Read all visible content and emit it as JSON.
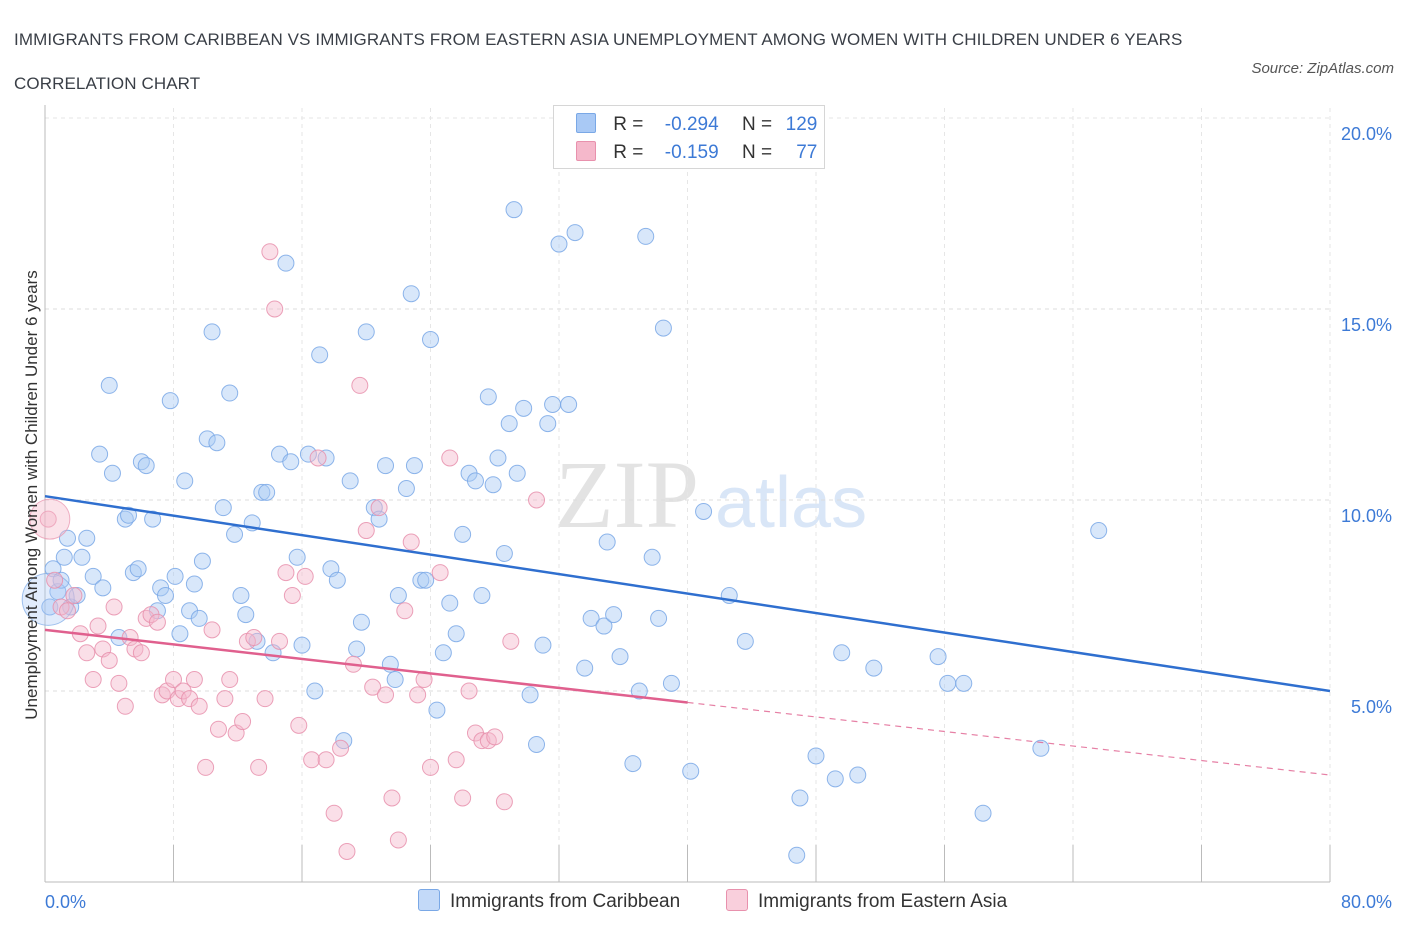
{
  "title": "IMMIGRANTS FROM CARIBBEAN VS IMMIGRANTS FROM EASTERN ASIA UNEMPLOYMENT AMONG WOMEN WITH CHILDREN UNDER 6 YEARS CORRELATION CHART",
  "source": "Source: ZipAtlas.com",
  "watermark": {
    "zip": "ZIP",
    "atlas": "atlas"
  },
  "legend": {
    "rows": [
      {
        "r_label": "R =",
        "r_value": "-0.294",
        "n_label": "N =",
        "n_value": "129",
        "color": "#a9c9f5"
      },
      {
        "r_label": "R =",
        "r_value": "-0.159",
        "n_label": "N =",
        "n_value": "77",
        "color": "#f5b8cb"
      }
    ]
  },
  "bottom_legend": {
    "caribbean": "Immigrants from Caribbean",
    "eastern_asia": "Immigrants from Eastern Asia"
  },
  "colors": {
    "caribbean_fill": "#a9c9f5",
    "caribbean_stroke": "#7aa8e6",
    "caribbean_line": "#2f6fcf",
    "eastern_asia_fill": "#f5b8cb",
    "eastern_asia_stroke": "#e891ad",
    "eastern_asia_line": "#e0608e",
    "axis_label": "#3d7ad6"
  },
  "chart_data": {
    "type": "scatter",
    "title": "IMMIGRANTS FROM CARIBBEAN VS IMMIGRANTS FROM EASTERN ASIA UNEMPLOYMENT AMONG WOMEN WITH CHILDREN UNDER 6 YEARS CORRELATION CHART",
    "xlabel": "",
    "ylabel": "Unemployment Among Women with Children Under 6 years",
    "xlim": [
      0,
      80
    ],
    "ylim": [
      0,
      20
    ],
    "x_tick_labels": [
      {
        "value": 0,
        "label": "0.0%"
      },
      {
        "value": 80,
        "label": "80.0%"
      }
    ],
    "y_tick_labels": [
      {
        "value": 5,
        "label": "5.0%"
      },
      {
        "value": 10,
        "label": "10.0%"
      },
      {
        "value": 15,
        "label": "15.0%"
      },
      {
        "value": 20,
        "label": "20.0%"
      }
    ],
    "grid": true,
    "legend_position": "top-center",
    "series": [
      {
        "name": "Immigrants from Caribbean",
        "R": -0.294,
        "N": 129,
        "trend": {
          "x": [
            0,
            80
          ],
          "y": [
            10.1,
            5.0
          ]
        },
        "points": [
          [
            0.3,
            7.2
          ],
          [
            0.5,
            8.2
          ],
          [
            0.8,
            7.6
          ],
          [
            1.0,
            7.9
          ],
          [
            1.2,
            8.5
          ],
          [
            1.4,
            9.0
          ],
          [
            1.6,
            7.2
          ],
          [
            2.0,
            7.5
          ],
          [
            2.3,
            8.5
          ],
          [
            2.6,
            9.0
          ],
          [
            3.0,
            8.0
          ],
          [
            3.4,
            11.2
          ],
          [
            3.6,
            7.7
          ],
          [
            4.0,
            13.0
          ],
          [
            4.2,
            10.7
          ],
          [
            4.6,
            6.4
          ],
          [
            5.0,
            9.5
          ],
          [
            5.2,
            9.6
          ],
          [
            5.5,
            8.1
          ],
          [
            5.8,
            8.2
          ],
          [
            6.0,
            11.0
          ],
          [
            6.3,
            10.9
          ],
          [
            6.7,
            9.5
          ],
          [
            7.0,
            7.1
          ],
          [
            7.2,
            7.7
          ],
          [
            7.5,
            7.5
          ],
          [
            7.8,
            12.6
          ],
          [
            8.1,
            8.0
          ],
          [
            8.4,
            6.5
          ],
          [
            8.7,
            10.5
          ],
          [
            9.0,
            7.1
          ],
          [
            9.3,
            7.8
          ],
          [
            9.6,
            6.9
          ],
          [
            9.8,
            8.4
          ],
          [
            10.1,
            11.6
          ],
          [
            10.4,
            14.4
          ],
          [
            10.7,
            11.5
          ],
          [
            11.1,
            9.8
          ],
          [
            11.5,
            12.8
          ],
          [
            11.8,
            9.1
          ],
          [
            12.2,
            7.5
          ],
          [
            12.5,
            7.0
          ],
          [
            12.9,
            9.4
          ],
          [
            13.2,
            6.3
          ],
          [
            13.5,
            10.2
          ],
          [
            13.8,
            10.2
          ],
          [
            14.2,
            6.0
          ],
          [
            14.6,
            11.2
          ],
          [
            15.0,
            16.2
          ],
          [
            15.3,
            11.0
          ],
          [
            15.7,
            8.5
          ],
          [
            16.0,
            6.2
          ],
          [
            16.4,
            11.2
          ],
          [
            16.8,
            5.0
          ],
          [
            17.1,
            13.8
          ],
          [
            17.5,
            11.1
          ],
          [
            17.8,
            8.2
          ],
          [
            18.2,
            7.9
          ],
          [
            18.6,
            3.7
          ],
          [
            19.0,
            10.5
          ],
          [
            19.4,
            6.1
          ],
          [
            19.7,
            6.8
          ],
          [
            20.0,
            14.4
          ],
          [
            20.5,
            9.8
          ],
          [
            20.8,
            9.5
          ],
          [
            21.2,
            10.9
          ],
          [
            21.5,
            5.7
          ],
          [
            21.8,
            5.3
          ],
          [
            22.0,
            7.5
          ],
          [
            22.5,
            10.3
          ],
          [
            22.8,
            15.4
          ],
          [
            23.0,
            10.9
          ],
          [
            23.4,
            7.9
          ],
          [
            23.7,
            7.9
          ],
          [
            24.0,
            14.2
          ],
          [
            24.4,
            4.5
          ],
          [
            24.8,
            6.0
          ],
          [
            25.2,
            7.3
          ],
          [
            25.6,
            6.5
          ],
          [
            26.0,
            9.1
          ],
          [
            26.4,
            10.7
          ],
          [
            26.8,
            10.5
          ],
          [
            27.2,
            7.5
          ],
          [
            27.6,
            12.7
          ],
          [
            27.9,
            10.4
          ],
          [
            28.2,
            11.1
          ],
          [
            28.6,
            8.6
          ],
          [
            28.9,
            12.0
          ],
          [
            29.2,
            17.6
          ],
          [
            29.4,
            10.7
          ],
          [
            29.8,
            12.4
          ],
          [
            30.2,
            4.9
          ],
          [
            30.6,
            3.6
          ],
          [
            31.0,
            6.2
          ],
          [
            31.3,
            12.0
          ],
          [
            31.6,
            12.5
          ],
          [
            32.0,
            16.7
          ],
          [
            32.6,
            12.5
          ],
          [
            33.0,
            17.0
          ],
          [
            33.6,
            5.6
          ],
          [
            34.0,
            6.9
          ],
          [
            34.8,
            6.7
          ],
          [
            35.0,
            8.9
          ],
          [
            35.4,
            7.0
          ],
          [
            35.8,
            5.9
          ],
          [
            36.6,
            3.1
          ],
          [
            37.0,
            5.0
          ],
          [
            37.4,
            16.9
          ],
          [
            37.8,
            8.5
          ],
          [
            38.2,
            6.9
          ],
          [
            38.5,
            14.5
          ],
          [
            39.0,
            5.2
          ],
          [
            40.2,
            2.9
          ],
          [
            41.0,
            9.7
          ],
          [
            42.6,
            7.5
          ],
          [
            43.6,
            6.3
          ],
          [
            46.8,
            0.7
          ],
          [
            47.0,
            2.2
          ],
          [
            48.0,
            3.3
          ],
          [
            49.2,
            2.7
          ],
          [
            49.6,
            6.0
          ],
          [
            50.6,
            2.8
          ],
          [
            51.6,
            5.6
          ],
          [
            55.6,
            5.9
          ],
          [
            56.2,
            5.2
          ],
          [
            57.2,
            5.2
          ],
          [
            58.4,
            1.8
          ],
          [
            62.0,
            3.5
          ],
          [
            65.6,
            9.2
          ]
        ]
      },
      {
        "name": "Immigrants from Eastern Asia",
        "R": -0.159,
        "N": 77,
        "trend": {
          "x": [
            0,
            40
          ],
          "y": [
            6.6,
            4.7
          ]
        },
        "trend_dashed": {
          "x": [
            40,
            80
          ],
          "y": [
            4.7,
            2.8
          ]
        },
        "points": [
          [
            0.2,
            9.5
          ],
          [
            0.6,
            7.9
          ],
          [
            1.0,
            7.2
          ],
          [
            1.4,
            7.1
          ],
          [
            1.8,
            7.5
          ],
          [
            2.2,
            6.5
          ],
          [
            2.6,
            6.0
          ],
          [
            3.0,
            5.3
          ],
          [
            3.3,
            6.7
          ],
          [
            3.6,
            6.1
          ],
          [
            4.0,
            5.8
          ],
          [
            4.3,
            7.2
          ],
          [
            4.6,
            5.2
          ],
          [
            5.0,
            4.6
          ],
          [
            5.3,
            6.4
          ],
          [
            5.6,
            6.1
          ],
          [
            6.0,
            6.0
          ],
          [
            6.3,
            6.9
          ],
          [
            6.6,
            7.0
          ],
          [
            7.0,
            6.8
          ],
          [
            7.3,
            4.9
          ],
          [
            7.6,
            5.0
          ],
          [
            8.0,
            5.3
          ],
          [
            8.3,
            4.8
          ],
          [
            8.6,
            5.0
          ],
          [
            9.0,
            4.8
          ],
          [
            9.3,
            5.3
          ],
          [
            9.6,
            4.6
          ],
          [
            10.0,
            3.0
          ],
          [
            10.4,
            6.6
          ],
          [
            10.8,
            4.0
          ],
          [
            11.2,
            4.8
          ],
          [
            11.5,
            5.3
          ],
          [
            11.9,
            3.9
          ],
          [
            12.3,
            4.2
          ],
          [
            12.6,
            6.3
          ],
          [
            13.0,
            6.4
          ],
          [
            13.3,
            3.0
          ],
          [
            13.7,
            4.8
          ],
          [
            14.0,
            16.5
          ],
          [
            14.3,
            15.0
          ],
          [
            14.6,
            6.3
          ],
          [
            15.0,
            8.1
          ],
          [
            15.4,
            7.5
          ],
          [
            15.8,
            4.1
          ],
          [
            16.2,
            8.0
          ],
          [
            16.6,
            3.2
          ],
          [
            17.0,
            11.1
          ],
          [
            17.5,
            3.2
          ],
          [
            18.0,
            1.8
          ],
          [
            18.4,
            3.5
          ],
          [
            18.8,
            0.8
          ],
          [
            19.2,
            5.7
          ],
          [
            19.6,
            13.0
          ],
          [
            20.0,
            9.2
          ],
          [
            20.4,
            5.1
          ],
          [
            20.8,
            9.8
          ],
          [
            21.2,
            4.9
          ],
          [
            21.6,
            2.2
          ],
          [
            22.0,
            1.1
          ],
          [
            22.4,
            7.1
          ],
          [
            22.8,
            8.9
          ],
          [
            23.2,
            4.9
          ],
          [
            23.6,
            5.3
          ],
          [
            24.0,
            3.0
          ],
          [
            24.6,
            8.1
          ],
          [
            25.2,
            11.1
          ],
          [
            25.6,
            3.2
          ],
          [
            26.0,
            2.2
          ],
          [
            26.4,
            5.0
          ],
          [
            26.8,
            3.9
          ],
          [
            27.2,
            3.7
          ],
          [
            27.6,
            3.7
          ],
          [
            28.0,
            3.8
          ],
          [
            28.6,
            2.1
          ],
          [
            29.0,
            6.3
          ],
          [
            30.6,
            10.0
          ]
        ]
      }
    ]
  }
}
